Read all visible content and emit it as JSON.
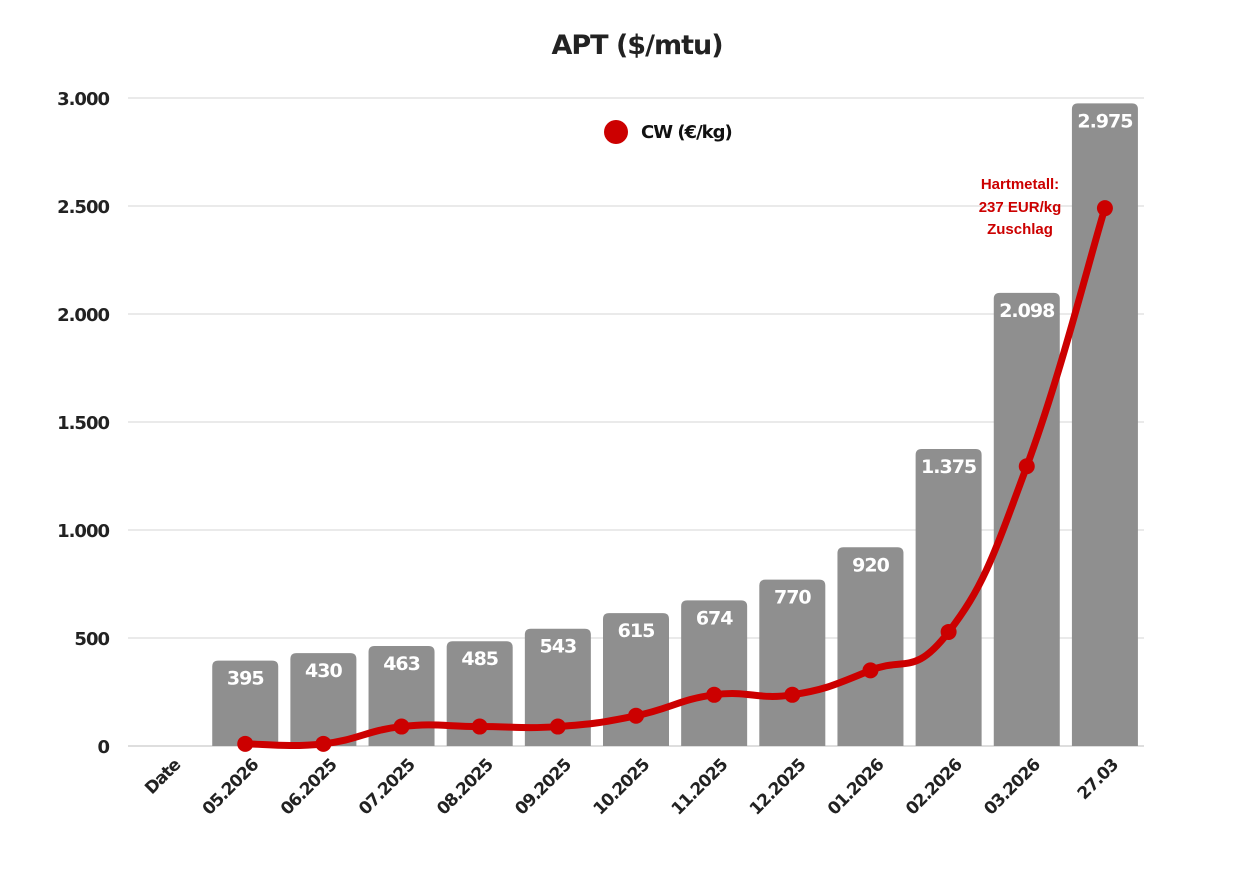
{
  "chart_data": {
    "type": "bar",
    "title": "APT ($/mtu)",
    "categories": [
      "Date",
      "05.2026",
      "06.2025",
      "07.2025",
      "08.2025",
      "09.2025",
      "10.2025",
      "11.2025",
      "12.2025",
      "01.2026",
      "02.2026",
      "03.2026",
      "27.03"
    ],
    "series": [
      {
        "name": "APT ($/mtu)",
        "type": "bar",
        "values": [
          null,
          395,
          430,
          463,
          485,
          543,
          615,
          674,
          770,
          920,
          1375,
          2098,
          2975
        ],
        "labels": [
          "",
          "395",
          "430",
          "463",
          "485",
          "543",
          "615",
          "674",
          "770",
          "920",
          "1.375",
          "2.098",
          "2.975"
        ],
        "color": "#8f8f8f"
      },
      {
        "name": "CW (€/kg)",
        "type": "line",
        "values": [
          null,
          10,
          10,
          90,
          90,
          90,
          140,
          237,
          237,
          350,
          528,
          1295,
          2490
        ],
        "color": "#cc0000"
      }
    ],
    "legend": {
      "label": "CW (€/kg)",
      "position": "top-center"
    },
    "yticks": [
      {
        "value": 0,
        "label": "0"
      },
      {
        "value": 500,
        "label": "500"
      },
      {
        "value": 1000,
        "label": "1.000"
      },
      {
        "value": 1500,
        "label": "1.500"
      },
      {
        "value": 2000,
        "label": "2.000"
      },
      {
        "value": 2500,
        "label": "2.500"
      },
      {
        "value": 3000,
        "label": "3.000"
      }
    ],
    "ylim": [
      0,
      3000
    ],
    "grid": true,
    "annotation": {
      "lines": [
        "Hartmetall:",
        "237 EUR/kg",
        "Zuschlag"
      ],
      "color": "#cc0000"
    },
    "xlabel": "",
    "ylabel": ""
  }
}
